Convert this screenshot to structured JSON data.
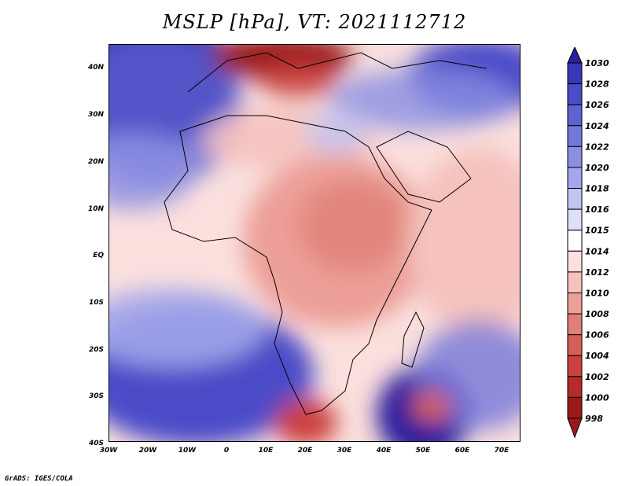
{
  "title": "MSLP [hPa], VT: 2021112712",
  "credit": "GrADS: IGES/COLA",
  "map": {
    "y_ticks": [
      "40N",
      "30N",
      "20N",
      "10N",
      "EQ",
      "10S",
      "20S",
      "30S",
      "40S"
    ],
    "x_ticks": [
      "30W",
      "20W",
      "10W",
      "0",
      "10E",
      "20E",
      "30E",
      "40E",
      "50E",
      "60E",
      "70E"
    ]
  },
  "colorbar": {
    "levels": [
      "1030",
      "1028",
      "1026",
      "1024",
      "1022",
      "1020",
      "1018",
      "1016",
      "1015",
      "1014",
      "1012",
      "1010",
      "1008",
      "1006",
      "1004",
      "1002",
      "1000",
      "998"
    ],
    "colors": [
      "#2a1f9e",
      "#3a36b8",
      "#4b4cc8",
      "#5e62d2",
      "#7478da",
      "#8b8fe2",
      "#a3a6ea",
      "#c2c4f2",
      "#dedff8",
      "#ffffff",
      "#fbe0de",
      "#f5c2be",
      "#ec9f98",
      "#e07f77",
      "#d65f58",
      "#cb413d",
      "#b52a2a",
      "#9a1a1a"
    ]
  }
}
